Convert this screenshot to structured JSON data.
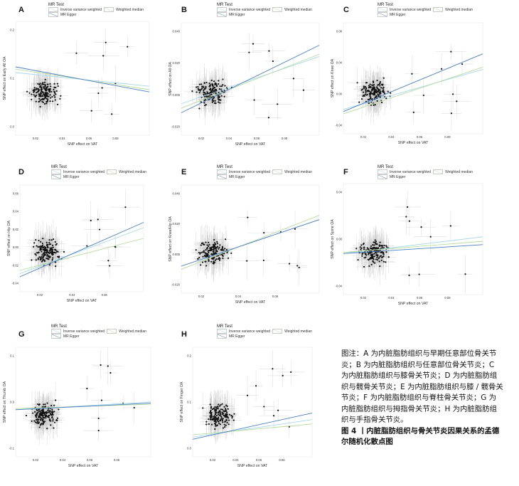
{
  "legend": {
    "title": "MR Test",
    "items": [
      "Inverse variance weighted",
      "Weighted median",
      "MR Egger"
    ],
    "colors": {
      "ivw": "#a8d8ea",
      "wm": "#b8dca0",
      "egger": "#4a7fc1"
    }
  },
  "panels": [
    {
      "label": "A",
      "xlabel": "SNP effect on VAT",
      "ylabel": "SNP effect on Early All OA",
      "xticks": [
        "0.02",
        "0.04",
        "0.06",
        "0.08"
      ],
      "yticks": [
        "0.2",
        "0.1",
        "0.0"
      ]
    },
    {
      "label": "B",
      "xlabel": "SNP effect on VAT",
      "ylabel": "SNP effect on All OA",
      "xticks": [
        "0.02",
        "0.04",
        "0.06",
        "0.08"
      ],
      "yticks": [
        "0.040",
        "0.020",
        "0.000",
        "-0.020"
      ]
    },
    {
      "label": "C",
      "xlabel": "SNP effect on VAT",
      "ylabel": "SNP effect on Knee OA",
      "xticks": [
        "0.02",
        "0.04",
        "0.06",
        "0.08"
      ],
      "yticks": [
        "0.08",
        "0.04",
        "0.00",
        "-0.04"
      ]
    },
    {
      "label": "D",
      "xlabel": "SNP effect on VAT",
      "ylabel": "SNP effect on Hip OA",
      "xticks": [
        "0.02",
        "0.04",
        "0.06"
      ],
      "yticks": [
        "0.06",
        "0.04",
        "0.02",
        "0.00",
        "-0.02",
        "-0.04"
      ]
    },
    {
      "label": "E",
      "xlabel": "SNP effect on VAT",
      "ylabel": "SNP effect on Knee/Hip OA",
      "xticks": [
        "0.02",
        "0.04",
        "0.06"
      ],
      "yticks": [
        "0.040",
        "0.020",
        "0.000",
        "-0.020"
      ]
    },
    {
      "label": "F",
      "xlabel": "SNP effect on VAT",
      "ylabel": "SNP effect on Spine OA",
      "xticks": [
        "0.02",
        "0.04",
        "0.06",
        "0.08"
      ],
      "yticks": [
        "0.04",
        "0.00",
        "-0.04"
      ]
    },
    {
      "label": "G",
      "xlabel": "SNP effect on VAT",
      "ylabel": "SNP effect on Thumb OA",
      "xticks": [
        "0.02",
        "0.04",
        "0.06",
        "0.08"
      ],
      "yticks": [
        "0.1",
        "0.0",
        "-0.1"
      ]
    },
    {
      "label": "H",
      "xlabel": "SNP effect on VAT",
      "ylabel": "SNP effect on Finger OA",
      "xticks": [
        "0.02",
        "0.04",
        "0.06",
        "0.08"
      ],
      "yticks": [
        "0.2",
        "0.1",
        "0.0"
      ]
    }
  ],
  "caption": {
    "body": "图注：A 为内脏脂肪组织与早期任意部位骨关节炎；B 为内脏脂肪组织与任意部位骨关节炎；C 为内脏脂肪组织与膝骨关节炎；D 为内脏脂肪组织与髋骨关节炎；E 为内脏脂肪组织与膝 / 髋骨关节炎；F 为内脏脂肪组织与脊柱骨关节炎；G 为内脏脂肪组织与拇指骨关节炎；H 为内脏脂肪组织与手指骨关节炎。",
    "title": "图 4 丨内脏脂肪组织与骨关节炎因果关系的孟德尔随机化散点图"
  }
}
